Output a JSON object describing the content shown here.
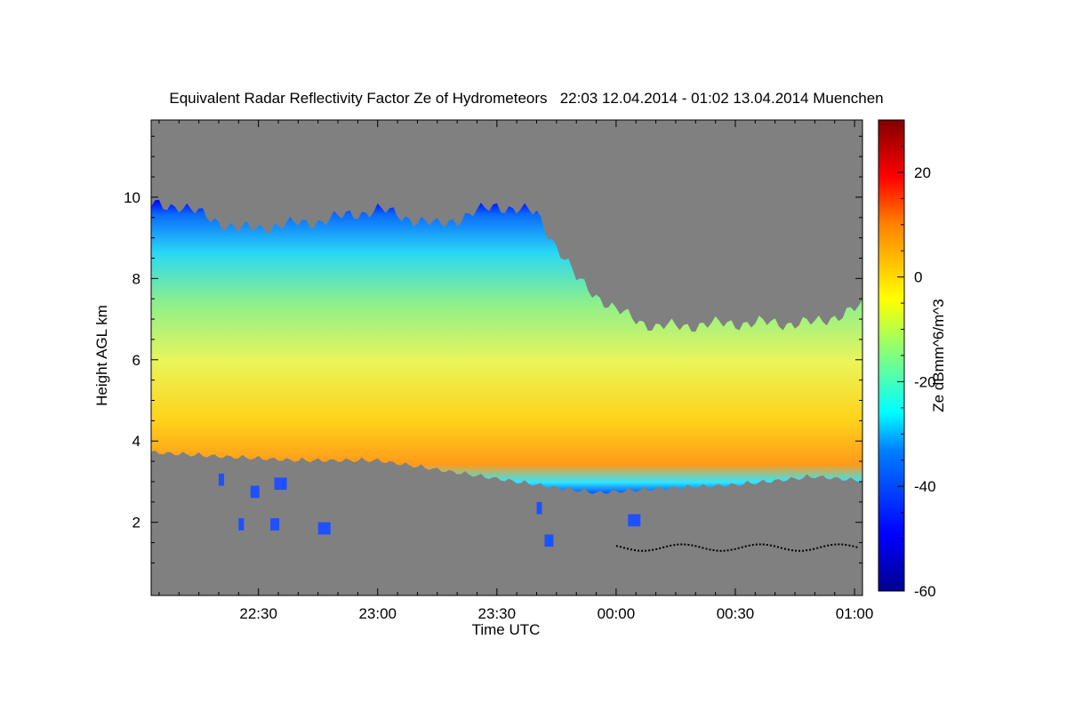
{
  "chart_data": {
    "type": "heatmap",
    "title": "Equivalent Radar Reflectivity Factor Ze of Hydrometeors   22:03 12.04.2014 - 01:02 13.04.2014 Muenchen",
    "xlabel": "Time UTC",
    "ylabel": "Height AGL km",
    "x_tick_labels": [
      "22:30",
      "23:00",
      "23:30",
      "00:00",
      "00:30",
      "01:00"
    ],
    "x_tick_minutes": [
      30,
      60,
      90,
      120,
      150,
      180
    ],
    "xlim_minutes": [
      3,
      182
    ],
    "y_ticks": [
      2,
      4,
      6,
      8,
      10
    ],
    "ylim": [
      0.2,
      11.9
    ],
    "colorbar": {
      "label": "Ze dBmm^6/m^3",
      "ticks": [
        20,
        0,
        -20,
        -40,
        -60
      ],
      "range": [
        -60,
        30
      ],
      "colors": [
        "#00008f",
        "#0000ff",
        "#0080ff",
        "#00ffff",
        "#80ff80",
        "#ffff00",
        "#ff8000",
        "#ff0000",
        "#800000"
      ]
    },
    "background_color": "#808080",
    "precip_layer": {
      "description": "main echo layer",
      "top_km_by_time": [
        [
          3,
          9.8
        ],
        [
          10,
          9.8
        ],
        [
          25,
          9.2
        ],
        [
          45,
          9.4
        ],
        [
          60,
          9.7
        ],
        [
          75,
          9.3
        ],
        [
          90,
          9.8
        ],
        [
          100,
          9.6
        ],
        [
          110,
          8.0
        ],
        [
          120,
          7.2
        ],
        [
          130,
          6.8
        ],
        [
          150,
          6.9
        ],
        [
          170,
          6.9
        ],
        [
          182,
          7.3
        ]
      ],
      "base_km_by_time": [
        [
          3,
          3.8
        ],
        [
          20,
          3.7
        ],
        [
          40,
          3.6
        ],
        [
          60,
          3.6
        ],
        [
          80,
          3.3
        ],
        [
          100,
          3.0
        ],
        [
          115,
          2.8
        ],
        [
          130,
          2.9
        ],
        [
          150,
          3.0
        ],
        [
          170,
          3.2
        ],
        [
          182,
          3.1
        ]
      ],
      "peak_ze_dbz": 10
    },
    "black_dots_layer": {
      "height_km": 1.4,
      "from_minute": 120,
      "to_minute": 181
    }
  }
}
